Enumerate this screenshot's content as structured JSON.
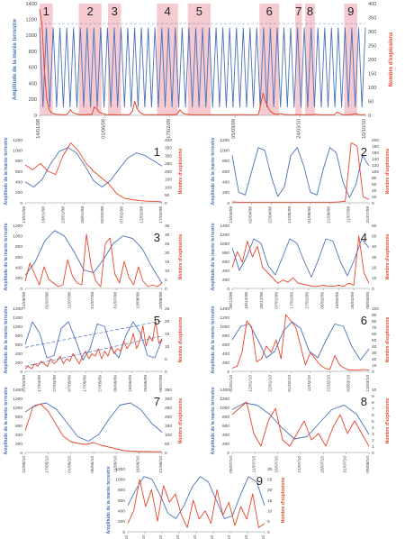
{
  "colors": {
    "tide": "#4a72b8",
    "explosions": "#e8432a",
    "band": "#f2b8c0",
    "trend": "#4a72b8"
  },
  "labels": {
    "ylabel_left": "Amplitude de la marée terrestre",
    "ylabel_right": "Nombre d'explosions"
  },
  "chart_data": [
    {
      "id": "main",
      "type": "line",
      "x_ticks": [
        "14/01/08",
        "01/06/08",
        "17/02/09",
        "05/09/09",
        "24/03/10",
        "10/10/10"
      ],
      "y_left_ticks": [
        "0",
        "200",
        "400",
        "600",
        "800",
        "1000",
        "1200",
        "1400"
      ],
      "y_right_ticks": [
        "0",
        "50",
        "100",
        "150",
        "200",
        "250",
        "300",
        "350",
        "400"
      ],
      "ylim_left": [
        0,
        1400
      ],
      "ylim_right": [
        0,
        400
      ],
      "band_labels": [
        "1",
        "2",
        "3",
        "4",
        "5",
        "6",
        "7",
        "8",
        "9"
      ],
      "bands_fraction": [
        [
          0.0,
          0.04
        ],
        [
          0.12,
          0.19
        ],
        [
          0.21,
          0.25
        ],
        [
          0.36,
          0.425
        ],
        [
          0.455,
          0.525
        ],
        [
          0.675,
          0.735
        ],
        [
          0.785,
          0.805
        ],
        [
          0.815,
          0.845
        ],
        [
          0.935,
          0.975
        ]
      ],
      "series": [
        {
          "name": "Amplitude de la marée terrestre",
          "axis": "left",
          "envelope_top": 1100,
          "envelope_bottom": 100,
          "cycles": 48,
          "values": []
        },
        {
          "name": "Nombre d'explosions",
          "axis": "right",
          "values": [
            380,
            330,
            160,
            60,
            20,
            10,
            5,
            4,
            3,
            3,
            2,
            2,
            8,
            20,
            10,
            6,
            4,
            3,
            2,
            2,
            3,
            4,
            3,
            30,
            25,
            12,
            8,
            5,
            3,
            2,
            2,
            3,
            2,
            2,
            2,
            3,
            2,
            2,
            4,
            15,
            50,
            25,
            12,
            6,
            3,
            2,
            2,
            3,
            2,
            2,
            2,
            2,
            2,
            2,
            2,
            3,
            2,
            2,
            6,
            20,
            10,
            5,
            4,
            3,
            2,
            2,
            2,
            2,
            2,
            2,
            2,
            2,
            2,
            2,
            2,
            2,
            2,
            2,
            2,
            2,
            2,
            2,
            3,
            2,
            3,
            3,
            2,
            2,
            2,
            2,
            2,
            2,
            3,
            40,
            80,
            50,
            30,
            15,
            8,
            5,
            4,
            6,
            5,
            3,
            3,
            2,
            2,
            2,
            3,
            2,
            2,
            2,
            2,
            2,
            2,
            3,
            4,
            3,
            2,
            2,
            2,
            2,
            2,
            2,
            2,
            12,
            8,
            4,
            2,
            2,
            2,
            3,
            5,
            6,
            3,
            2,
            2,
            4
          ]
        }
      ]
    },
    {
      "id": "p1",
      "type": "line",
      "panel_label": "1",
      "x_ticks": [
        "13/01/08",
        "18/01/08",
        "23/01/08",
        "28/01/08",
        "02/02/08",
        "07/02/08",
        "12/02/08",
        "17/02/08"
      ],
      "y_left_ticks": [
        "0",
        "200",
        "400",
        "600",
        "800",
        "1000",
        "1200"
      ],
      "y_right_ticks": [
        "0",
        "50",
        "100",
        "150",
        "200",
        "250",
        "300",
        "350",
        "400"
      ],
      "ylim_left": [
        0,
        1200
      ],
      "ylim_right": [
        0,
        400
      ],
      "series": [
        {
          "name": "tide",
          "axis": "left",
          "values": [
            400,
            300,
            450,
            750,
            980,
            1050,
            950,
            700,
            420,
            300,
            430,
            650,
            850,
            950,
            900,
            800,
            700
          ]
        },
        {
          "name": "explosions",
          "axis": "right",
          "values": [
            240,
            210,
            250,
            200,
            180,
            300,
            380,
            330,
            250,
            200,
            160,
            120,
            60,
            30,
            20,
            15,
            10,
            10,
            5
          ]
        }
      ]
    },
    {
      "id": "p2",
      "type": "line",
      "panel_label": "2",
      "x_ticks": [
        "13/03/08",
        "02/04/08",
        "22/04/08",
        "12/05/08",
        "01/06/08",
        "21/06/08",
        "11/07/08",
        "31/07/08"
      ],
      "y_left_ticks": [
        "0",
        "200",
        "400",
        "600",
        "800",
        "1000",
        "1200"
      ],
      "y_right_ticks": [
        "0",
        "20",
        "40",
        "60",
        "80",
        "100",
        "120",
        "140",
        "160",
        "180",
        "200"
      ],
      "ylim_left": [
        0,
        1200
      ],
      "ylim_right": [
        0,
        200
      ],
      "series": [
        {
          "name": "tide",
          "axis": "left",
          "values": [
            900,
            200,
            150,
            600,
            1050,
            1000,
            500,
            120,
            300,
            900,
            1050,
            700,
            200,
            150,
            650,
            1050,
            950,
            400,
            100,
            350,
            900,
            700
          ]
        },
        {
          "name": "explosions",
          "axis": "right",
          "values": [
            3,
            2,
            2,
            2,
            2,
            2,
            2,
            2,
            2,
            2,
            2,
            2,
            2,
            2,
            2,
            2,
            2,
            2,
            3,
            5,
            190,
            180,
            20,
            10
          ]
        }
      ]
    },
    {
      "id": "p3",
      "type": "line",
      "panel_label": "3",
      "x_ticks": [
        "21/06/08",
        "01/07/08",
        "11/07/08",
        "21/07/08",
        "31/07/08",
        "10/08/08",
        "20/08/08"
      ],
      "y_left_ticks": [
        "0",
        "200",
        "400",
        "600",
        "800",
        "1000",
        "1200"
      ],
      "y_right_ticks": [
        "0",
        "5",
        "10",
        "15",
        "20",
        "25",
        "30",
        "35"
      ],
      "ylim_left": [
        0,
        1200
      ],
      "ylim_right": [
        0,
        35
      ],
      "series": [
        {
          "name": "tide",
          "axis": "left",
          "values": [
            250,
            500,
            900,
            1100,
            1000,
            700,
            350,
            300,
            550,
            850,
            1000,
            950,
            750,
            400,
            100
          ]
        },
        {
          "name": "explosions",
          "axis": "right",
          "values": [
            4,
            14,
            8,
            2,
            12,
            5,
            3,
            1,
            2,
            16,
            7,
            3,
            2,
            30,
            12,
            4,
            1,
            25,
            28,
            8,
            3,
            15,
            6,
            2,
            12,
            4,
            1,
            2,
            1,
            3
          ]
        }
      ]
    },
    {
      "id": "p4",
      "type": "line",
      "panel_label": "4",
      "x_ticks": [
        "08/12/08",
        "18/12/08",
        "28/12/08",
        "07/01/09",
        "17/01/09",
        "27/01/09",
        "06/02/09",
        "16/02/09",
        "26/02/09",
        "08/03/09"
      ],
      "y_left_ticks": [
        "0",
        "200",
        "400",
        "600",
        "800",
        "1000",
        "1200",
        "1400"
      ],
      "y_right_ticks": [
        "0",
        "10",
        "20",
        "30",
        "40",
        "50",
        "60"
      ],
      "ylim_left": [
        0,
        1400
      ],
      "ylim_right": [
        0,
        60
      ],
      "series": [
        {
          "name": "tide",
          "axis": "left",
          "values": [
            900,
            400,
            700,
            1100,
            1000,
            500,
            300,
            700,
            1100,
            1000,
            600,
            250,
            650,
            1100,
            1050,
            600,
            280,
            650,
            1100,
            900
          ]
        },
        {
          "name": "explosions",
          "axis": "right",
          "values": [
            20,
            35,
            25,
            45,
            30,
            40,
            20,
            15,
            10,
            5,
            8,
            6,
            10,
            5,
            4,
            3,
            2,
            2,
            3,
            2,
            2,
            3,
            2,
            5,
            3,
            50,
            15,
            5
          ]
        }
      ]
    },
    {
      "id": "p5",
      "type": "line",
      "panel_label": "5",
      "x_ticks": [
        "07/04/09",
        "17/04/09",
        "27/04/09",
        "07/05/09",
        "17/05/09",
        "27/05/09",
        "06/06/09",
        "16/06/09",
        "26/06/09",
        "06/07/09"
      ],
      "y_left_ticks": [
        "0",
        "200",
        "400",
        "600",
        "800",
        "1000",
        "1200",
        "1400"
      ],
      "y_right_ticks": [
        "0",
        "5",
        "10",
        "15",
        "20",
        "25"
      ],
      "ylim_left": [
        0,
        1400
      ],
      "ylim_right": [
        0,
        25
      ],
      "series": [
        {
          "name": "tide",
          "axis": "left",
          "values": [
            600,
            1100,
            850,
            300,
            350,
            950,
            1100,
            700,
            250,
            500,
            1050,
            1000,
            500,
            300,
            800,
            1100,
            850,
            350,
            300,
            700
          ]
        },
        {
          "name": "explosions",
          "axis": "right",
          "values": [
            1,
            2,
            1,
            3,
            2,
            4,
            3,
            2,
            5,
            3,
            4,
            6,
            3,
            5,
            4,
            7,
            5,
            3,
            6,
            8,
            5,
            7,
            6,
            9,
            5,
            8,
            6,
            10,
            7,
            9,
            8,
            12,
            9,
            11,
            15,
            9,
            12,
            18,
            10,
            14,
            12,
            20,
            11,
            13
          ]
        }
      ],
      "trends": [
        {
          "from": 9.5,
          "to": 20
        },
        {
          "from": 2,
          "to": 14
        }
      ]
    },
    {
      "id": "p6",
      "type": "line",
      "panel_label": "6",
      "x_ticks": [
        "02/01/10",
        "12/01/10",
        "22/01/10",
        "01/02/10",
        "11/02/10",
        "21/02/10",
        "03/03/10",
        "13/03/10"
      ],
      "y_left_ticks": [
        "0",
        "200",
        "400",
        "600",
        "800",
        "1000",
        "1200",
        "1400"
      ],
      "y_right_ticks": [
        "0",
        "10",
        "20",
        "30",
        "40",
        "50",
        "60",
        "70",
        "80",
        "90",
        "100"
      ],
      "ylim_left": [
        0,
        1400
      ],
      "ylim_right": [
        0,
        100
      ],
      "series": [
        {
          "name": "tide",
          "axis": "left",
          "values": [
            700,
            1000,
            1050,
            700,
            300,
            450,
            900,
            1100,
            950,
            450,
            300,
            700,
            1050,
            1000,
            550,
            250,
            500
          ]
        },
        {
          "name": "explosions",
          "axis": "right",
          "values": [
            5,
            8,
            30,
            80,
            70,
            15,
            20,
            40,
            30,
            50,
            20,
            90,
            80,
            70,
            40,
            10,
            30,
            20,
            10,
            5,
            3,
            25,
            10,
            5,
            2,
            2,
            2,
            3,
            2
          ]
        }
      ]
    },
    {
      "id": "p7",
      "type": "line",
      "panel_label": "7",
      "x_ticks": [
        "22/05/10",
        "27/05/10",
        "01/06/10",
        "06/06/10",
        "11/06/10",
        "16/06/10",
        "21/06/10"
      ],
      "y_left_ticks": [
        "0",
        "200",
        "400",
        "600",
        "800",
        "1000",
        "1200",
        "1400"
      ],
      "y_right_ticks": [
        "0",
        "50",
        "100",
        "150",
        "200",
        "250",
        "300",
        "350"
      ],
      "ylim_left": [
        0,
        1400
      ],
      "ylim_right": [
        0,
        350
      ],
      "series": [
        {
          "name": "tide",
          "axis": "left",
          "values": [
            900,
            1050,
            1100,
            950,
            650,
            350,
            250,
            400,
            750,
            1050,
            1100,
            950,
            650,
            450
          ]
        },
        {
          "name": "explosions",
          "axis": "right",
          "values": [
            120,
            250,
            270,
            230,
            160,
            90,
            60,
            50,
            45,
            55,
            40,
            30,
            20,
            10,
            8,
            5,
            5,
            4,
            4
          ]
        }
      ]
    },
    {
      "id": "p8",
      "type": "line",
      "panel_label": "8",
      "x_ticks": [
        "06/07/10",
        "11/07/10",
        "16/07/10",
        "21/07/10",
        "26/07/10",
        "31/07/10",
        "05/08/10"
      ],
      "y_left_ticks": [
        "0",
        "200",
        "400",
        "600",
        "800",
        "1000",
        "1200",
        "1400"
      ],
      "y_right_ticks": [
        "0",
        "1",
        "2",
        "3",
        "4",
        "5",
        "6",
        "7",
        "8",
        "9",
        "10"
      ],
      "ylim_left": [
        0,
        1400
      ],
      "ylim_right": [
        0,
        10
      ],
      "series": [
        {
          "name": "tide",
          "axis": "left",
          "values": [
            950,
            1100,
            1050,
            850,
            550,
            300,
            350,
            650,
            950,
            1050,
            850,
            400
          ]
        },
        {
          "name": "explosions",
          "axis": "right",
          "values": [
            6,
            7,
            8,
            3,
            1,
            5,
            7,
            2,
            1,
            3,
            5,
            2,
            3,
            1,
            4,
            6,
            3,
            5,
            3,
            1
          ]
        }
      ]
    },
    {
      "id": "p9",
      "type": "line",
      "panel_label": "9",
      "x_ticks": [
        "18/11/10",
        "23/11/10",
        "28/11/10",
        "03/12/10",
        "08/12/10",
        "13/12/10",
        "18/12/10",
        "23/12/10",
        "28/12/10"
      ],
      "y_left_ticks": [
        "0",
        "200",
        "400",
        "600",
        "800",
        "1000",
        "1200"
      ],
      "y_right_ticks": [
        "0",
        "5",
        "10",
        "15",
        "20",
        "25",
        "30"
      ],
      "ylim_left": [
        0,
        1200
      ],
      "ylim_right": [
        0,
        30
      ],
      "series": [
        {
          "name": "tide",
          "axis": "left",
          "values": [
            500,
            800,
            1050,
            1000,
            700,
            350,
            250,
            500,
            850,
            1050,
            950,
            600,
            250,
            300,
            700,
            1050,
            950,
            500
          ]
        },
        {
          "name": "explosions",
          "axis": "right",
          "values": [
            4,
            10,
            25,
            12,
            20,
            5,
            22,
            14,
            18,
            8,
            2,
            15,
            6,
            10,
            4,
            20,
            8,
            14,
            3,
            12,
            6,
            18,
            2,
            4
          ]
        }
      ]
    }
  ]
}
